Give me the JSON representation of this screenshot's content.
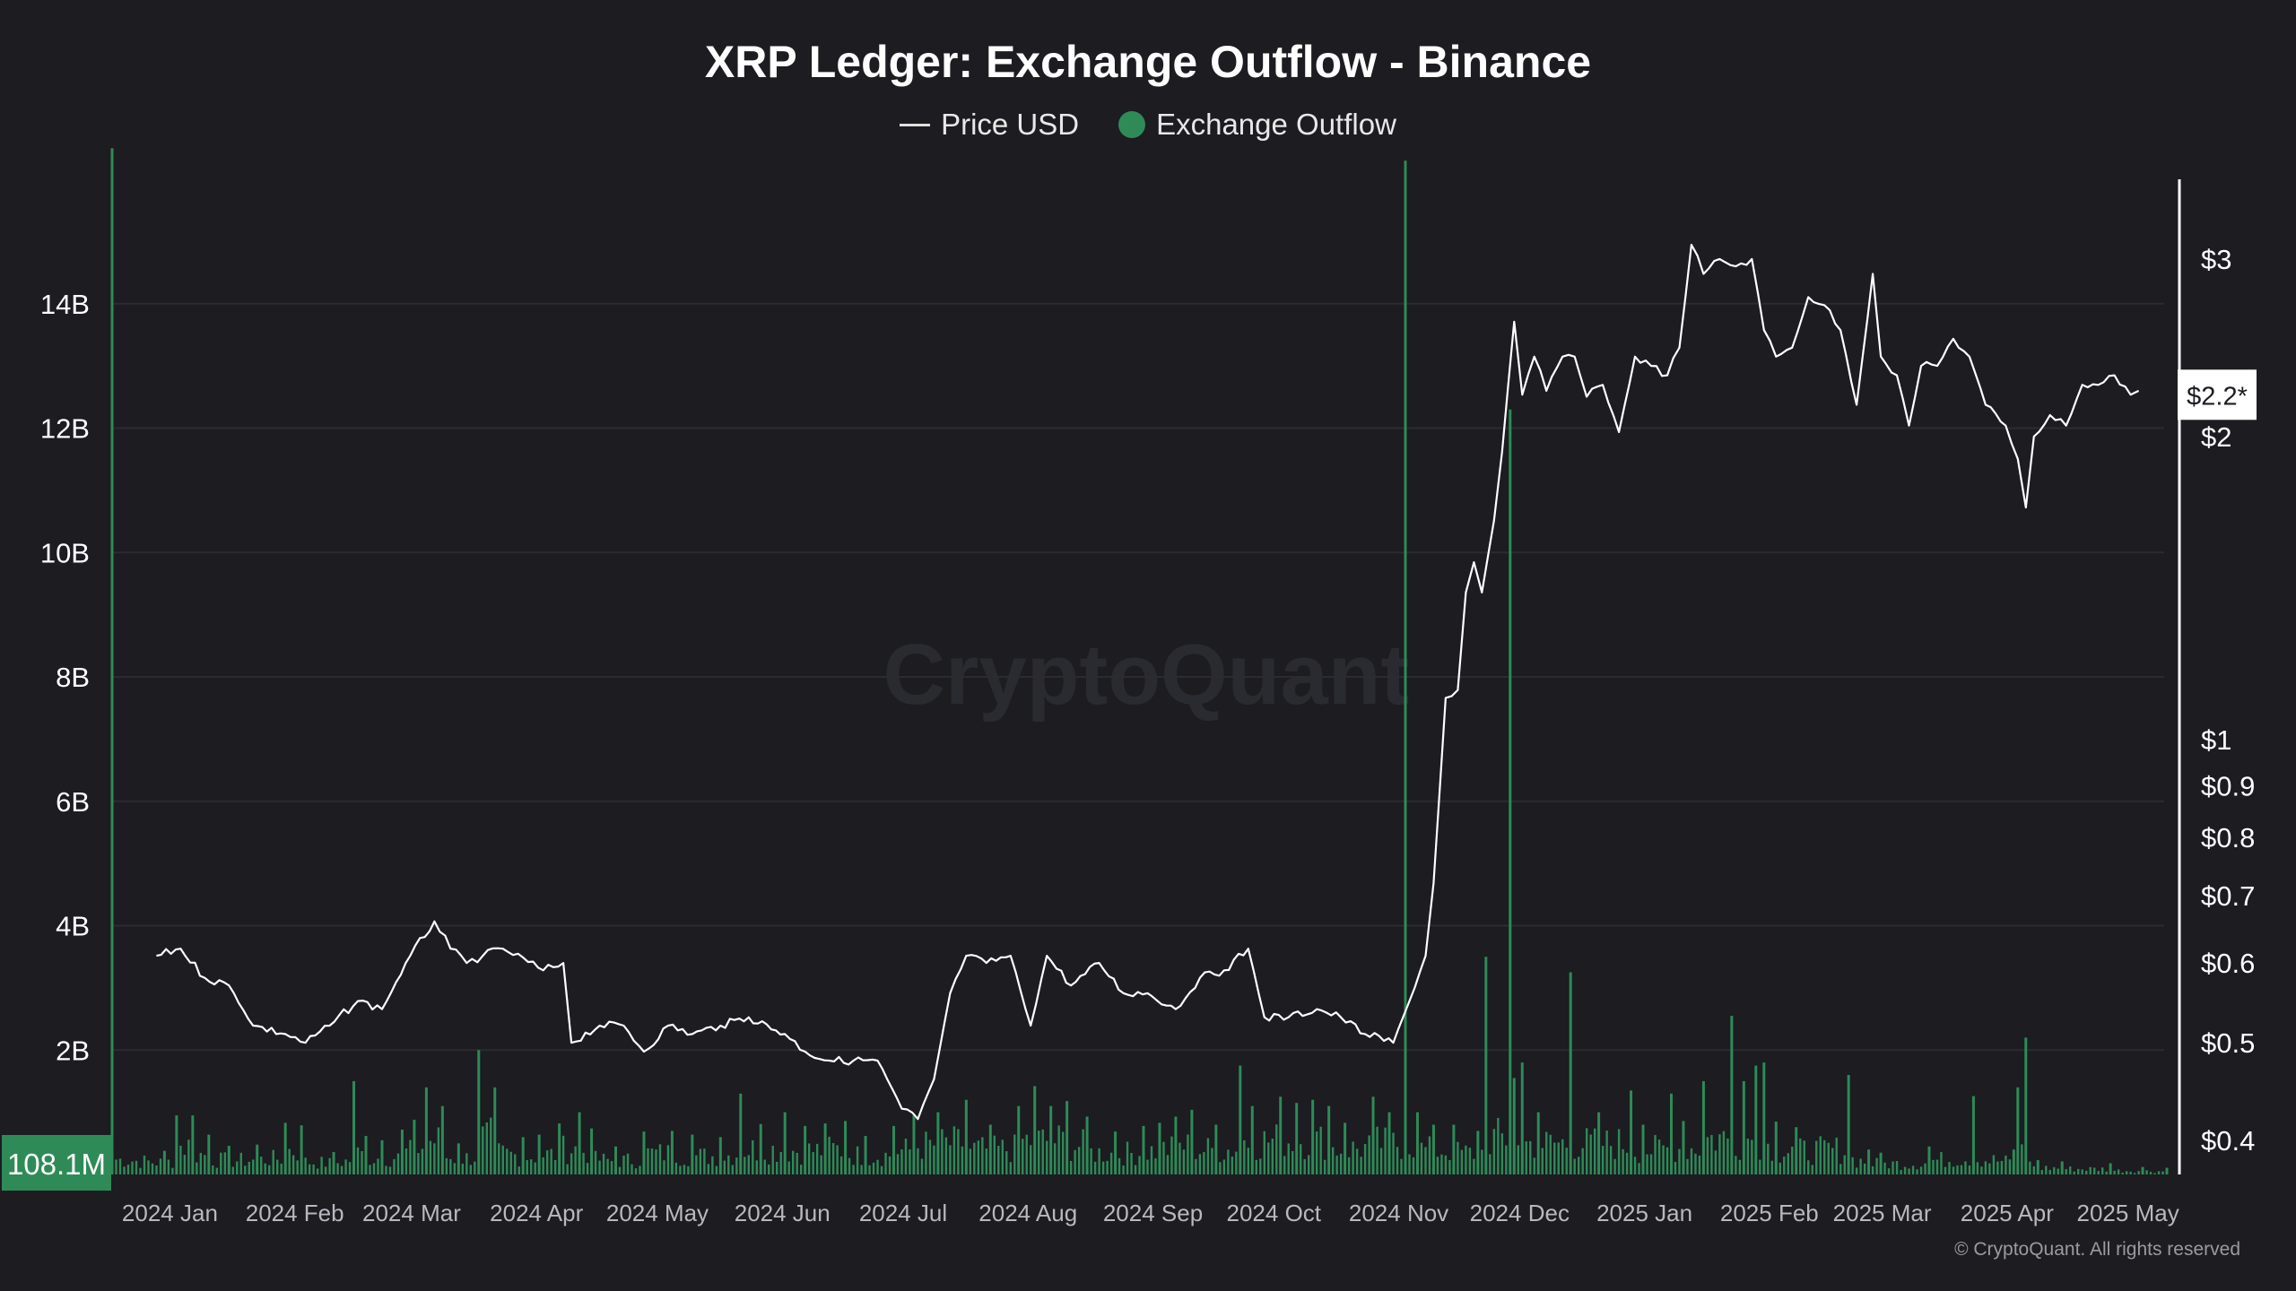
{
  "chart_data": {
    "type": "bar+line",
    "title": "XRP Ledger: Exchange Outflow - Binance",
    "watermark": "CryptoQuant",
    "copyright": "© CryptoQuant. All rights reserved",
    "legend": {
      "placement": "top-center",
      "items": [
        {
          "name": "Price USD",
          "marker": "line",
          "color": "#e0e0e0"
        },
        {
          "name": "Exchange Outflow",
          "marker": "dot",
          "color": "#2e8b57"
        }
      ]
    },
    "grid": true,
    "x_axis": {
      "range": [
        "2023-12-21",
        "2025-05-16"
      ],
      "ticks": [
        {
          "label": "2024 Jan",
          "date": "2024-01-01"
        },
        {
          "label": "2024 Feb",
          "date": "2024-02-01"
        },
        {
          "label": "2024 Mar",
          "date": "2024-03-01"
        },
        {
          "label": "2024 Apr",
          "date": "2024-04-01"
        },
        {
          "label": "2024 May",
          "date": "2024-05-01"
        },
        {
          "label": "2024 Jun",
          "date": "2024-06-01"
        },
        {
          "label": "2024 Jul",
          "date": "2024-07-01"
        },
        {
          "label": "2024 Aug",
          "date": "2024-08-01"
        },
        {
          "label": "2024 Sep",
          "date": "2024-09-01"
        },
        {
          "label": "2024 Oct",
          "date": "2024-10-01"
        },
        {
          "label": "2024 Nov",
          "date": "2024-11-01"
        },
        {
          "label": "2024 Dec",
          "date": "2024-12-01"
        },
        {
          "label": "2025 Jan",
          "date": "2025-01-01"
        },
        {
          "label": "2025 Feb",
          "date": "2025-02-01"
        },
        {
          "label": "2025 Mar",
          "date": "2025-03-01"
        },
        {
          "label": "2025 Apr",
          "date": "2025-04-01"
        },
        {
          "label": "2025 May",
          "date": "2025-05-01"
        }
      ]
    },
    "y_left": {
      "range": [
        0,
        16000000000
      ],
      "ticks": [
        {
          "label": "2B",
          "value": 2000000000
        },
        {
          "label": "4B",
          "value": 4000000000
        },
        {
          "label": "6B",
          "value": 6000000000
        },
        {
          "label": "8B",
          "value": 8000000000
        },
        {
          "label": "10B",
          "value": 10000000000
        },
        {
          "label": "12B",
          "value": 12000000000
        },
        {
          "label": "14B",
          "value": 14000000000
        }
      ],
      "current_label": "108.1M",
      "current_value": 108100000,
      "current_color": "#2e8b57"
    },
    "y_right": {
      "scale": "log",
      "range": [
        0.37,
        3.6
      ],
      "ticks": [
        {
          "label": "$0.4",
          "value": 0.4
        },
        {
          "label": "$0.5",
          "value": 0.5
        },
        {
          "label": "$0.6",
          "value": 0.6
        },
        {
          "label": "$0.7",
          "value": 0.7
        },
        {
          "label": "$0.8",
          "value": 0.8
        },
        {
          "label": "$0.9",
          "value": 0.9
        },
        {
          "label": "$1",
          "value": 1
        },
        {
          "label": "$2",
          "value": 2
        },
        {
          "label": "$3",
          "value": 3
        }
      ],
      "current_label": "$2.2*",
      "current_value": 2.2
    },
    "outflow_series": {
      "name": "Exchange Outflow",
      "color": "#2e8b57",
      "points": [
        [
          "2023-12-21",
          16500000000
        ],
        [
          "2024-01-03",
          380000000
        ],
        [
          "2024-01-06",
          950000000
        ],
        [
          "2024-01-10",
          950000000
        ],
        [
          "2024-01-14",
          640000000
        ],
        [
          "2024-01-19",
          460000000
        ],
        [
          "2024-01-26",
          480000000
        ],
        [
          "2024-02-02",
          830000000
        ],
        [
          "2024-02-06",
          790000000
        ],
        [
          "2024-02-14",
          360000000
        ],
        [
          "2024-02-19",
          1500000000
        ],
        [
          "2024-02-22",
          620000000
        ],
        [
          "2024-02-26",
          550000000
        ],
        [
          "2024-03-02",
          720000000
        ],
        [
          "2024-03-05",
          880000000
        ],
        [
          "2024-03-08",
          1400000000
        ],
        [
          "2024-03-12",
          1100000000
        ],
        [
          "2024-03-16",
          500000000
        ],
        [
          "2024-03-21",
          2000000000
        ],
        [
          "2024-03-25",
          1400000000
        ],
        [
          "2024-04-01",
          600000000
        ],
        [
          "2024-04-05",
          640000000
        ],
        [
          "2024-04-10",
          820000000
        ],
        [
          "2024-04-15",
          1000000000
        ],
        [
          "2024-04-18",
          740000000
        ],
        [
          "2024-04-24",
          450000000
        ],
        [
          "2024-05-01",
          690000000
        ],
        [
          "2024-05-08",
          700000000
        ],
        [
          "2024-05-13",
          640000000
        ],
        [
          "2024-05-20",
          600000000
        ],
        [
          "2024-05-25",
          1300000000
        ],
        [
          "2024-05-30",
          810000000
        ],
        [
          "2024-06-05",
          1000000000
        ],
        [
          "2024-06-10",
          780000000
        ],
        [
          "2024-06-15",
          820000000
        ],
        [
          "2024-06-20",
          860000000
        ],
        [
          "2024-06-25",
          620000000
        ],
        [
          "2024-07-02",
          780000000
        ],
        [
          "2024-07-07",
          950000000
        ],
        [
          "2024-07-13",
          1000000000
        ],
        [
          "2024-07-20",
          1200000000
        ],
        [
          "2024-07-26",
          800000000
        ],
        [
          "2024-08-02",
          1100000000
        ],
        [
          "2024-08-06",
          1420000000
        ],
        [
          "2024-08-10",
          1100000000
        ],
        [
          "2024-08-14",
          1180000000
        ],
        [
          "2024-08-19",
          930000000
        ],
        [
          "2024-08-26",
          690000000
        ],
        [
          "2024-09-02",
          780000000
        ],
        [
          "2024-09-06",
          830000000
        ],
        [
          "2024-09-10",
          930000000
        ],
        [
          "2024-09-14",
          1040000000
        ],
        [
          "2024-09-20",
          800000000
        ],
        [
          "2024-09-26",
          1750000000
        ],
        [
          "2024-09-29",
          1100000000
        ],
        [
          "2024-10-06",
          1250000000
        ],
        [
          "2024-10-10",
          1150000000
        ],
        [
          "2024-10-14",
          1200000000
        ],
        [
          "2024-10-18",
          1100000000
        ],
        [
          "2024-10-22",
          830000000
        ],
        [
          "2024-10-29",
          1250000000
        ],
        [
          "2024-11-02",
          1000000000
        ],
        [
          "2024-11-06",
          16300000000
        ],
        [
          "2024-11-09",
          1000000000
        ],
        [
          "2024-11-13",
          800000000
        ],
        [
          "2024-11-18",
          800000000
        ],
        [
          "2024-11-24",
          700000000
        ],
        [
          "2024-11-26",
          3500000000
        ],
        [
          "2024-12-02",
          12300000000
        ],
        [
          "2024-12-03",
          1550000000
        ],
        [
          "2024-12-05",
          1800000000
        ],
        [
          "2024-12-09",
          1000000000
        ],
        [
          "2024-12-17",
          3250000000
        ],
        [
          "2024-12-24",
          1000000000
        ],
        [
          "2025-01-01",
          1350000000
        ],
        [
          "2025-01-04",
          800000000
        ],
        [
          "2025-01-11",
          1300000000
        ],
        [
          "2025-01-14",
          860000000
        ],
        [
          "2025-01-19",
          1500000000
        ],
        [
          "2025-01-26",
          2550000000
        ],
        [
          "2025-01-29",
          1500000000
        ],
        [
          "2025-02-01",
          1750000000
        ],
        [
          "2025-02-03",
          1800000000
        ],
        [
          "2025-02-06",
          850000000
        ],
        [
          "2025-02-11",
          760000000
        ],
        [
          "2025-02-24",
          1600000000
        ],
        [
          "2025-03-01",
          400000000
        ],
        [
          "2025-03-04",
          350000000
        ],
        [
          "2025-03-16",
          450000000
        ],
        [
          "2025-03-27",
          1260000000
        ],
        [
          "2025-04-06",
          400000000
        ],
        [
          "2025-04-07",
          1400000000
        ],
        [
          "2025-04-09",
          2200000000
        ],
        [
          "2025-04-12",
          230000000
        ],
        [
          "2025-04-18",
          210000000
        ],
        [
          "2025-04-30",
          180000000
        ],
        [
          "2025-05-08",
          120000000
        ],
        [
          "2025-05-14",
          108100000
        ]
      ]
    },
    "price_series": {
      "name": "Price USD",
      "color": "#ffffff",
      "points": [
        [
          "2024-01-01",
          0.61
        ],
        [
          "2024-01-07",
          0.62
        ],
        [
          "2024-01-13",
          0.58
        ],
        [
          "2024-01-19",
          0.57
        ],
        [
          "2024-01-25",
          0.52
        ],
        [
          "2024-02-02",
          0.51
        ],
        [
          "2024-02-07",
          0.5
        ],
        [
          "2024-02-13",
          0.52
        ],
        [
          "2024-02-20",
          0.55
        ],
        [
          "2024-02-26",
          0.54
        ],
        [
          "2024-03-04",
          0.61
        ],
        [
          "2024-03-10",
          0.66
        ],
        [
          "2024-03-14",
          0.62
        ],
        [
          "2024-03-18",
          0.6
        ],
        [
          "2024-03-22",
          0.61
        ],
        [
          "2024-03-27",
          0.62
        ],
        [
          "2024-04-06",
          0.59
        ],
        [
          "2024-04-11",
          0.6
        ],
        [
          "2024-04-13",
          0.5
        ],
        [
          "2024-04-20",
          0.52
        ],
        [
          "2024-04-26",
          0.52
        ],
        [
          "2024-05-01",
          0.49
        ],
        [
          "2024-05-07",
          0.52
        ],
        [
          "2024-05-13",
          0.51
        ],
        [
          "2024-05-20",
          0.52
        ],
        [
          "2024-05-27",
          0.53
        ],
        [
          "2024-06-05",
          0.51
        ],
        [
          "2024-06-10",
          0.49
        ],
        [
          "2024-06-16",
          0.48
        ],
        [
          "2024-06-22",
          0.48
        ],
        [
          "2024-06-28",
          0.48
        ],
        [
          "2024-07-04",
          0.43
        ],
        [
          "2024-07-08",
          0.42
        ],
        [
          "2024-07-12",
          0.46
        ],
        [
          "2024-07-16",
          0.56
        ],
        [
          "2024-07-20",
          0.61
        ],
        [
          "2024-07-25",
          0.6
        ],
        [
          "2024-07-31",
          0.61
        ],
        [
          "2024-08-05",
          0.52
        ],
        [
          "2024-08-09",
          0.61
        ],
        [
          "2024-08-15",
          0.57
        ],
        [
          "2024-08-22",
          0.6
        ],
        [
          "2024-08-28",
          0.56
        ],
        [
          "2024-09-03",
          0.56
        ],
        [
          "2024-09-10",
          0.54
        ],
        [
          "2024-09-16",
          0.58
        ],
        [
          "2024-09-22",
          0.59
        ],
        [
          "2024-09-28",
          0.62
        ],
        [
          "2024-10-02",
          0.53
        ],
        [
          "2024-10-08",
          0.53
        ],
        [
          "2024-10-15",
          0.54
        ],
        [
          "2024-10-21",
          0.53
        ],
        [
          "2024-10-27",
          0.51
        ],
        [
          "2024-11-03",
          0.5
        ],
        [
          "2024-11-07",
          0.55
        ],
        [
          "2024-11-11",
          0.61
        ],
        [
          "2024-11-13",
          0.72
        ],
        [
          "2024-11-16",
          1.1
        ],
        [
          "2024-11-19",
          1.12
        ],
        [
          "2024-11-21",
          1.4
        ],
        [
          "2024-11-23",
          1.5
        ],
        [
          "2024-11-25",
          1.4
        ],
        [
          "2024-11-28",
          1.65
        ],
        [
          "2024-11-30",
          1.93
        ],
        [
          "2024-12-03",
          2.6
        ],
        [
          "2024-12-05",
          2.2
        ],
        [
          "2024-12-08",
          2.4
        ],
        [
          "2024-12-11",
          2.22
        ],
        [
          "2024-12-15",
          2.4
        ],
        [
          "2024-12-18",
          2.4
        ],
        [
          "2024-12-21",
          2.19
        ],
        [
          "2024-12-25",
          2.25
        ],
        [
          "2024-12-29",
          2.02
        ],
        [
          "2025-01-02",
          2.4
        ],
        [
          "2025-01-06",
          2.35
        ],
        [
          "2025-01-10",
          2.3
        ],
        [
          "2025-01-13",
          2.45
        ],
        [
          "2025-01-16",
          3.1
        ],
        [
          "2025-01-19",
          2.9
        ],
        [
          "2025-01-23",
          3.0
        ],
        [
          "2025-01-27",
          2.95
        ],
        [
          "2025-01-31",
          3.0
        ],
        [
          "2025-02-03",
          2.55
        ],
        [
          "2025-02-06",
          2.4
        ],
        [
          "2025-02-10",
          2.45
        ],
        [
          "2025-02-14",
          2.75
        ],
        [
          "2025-02-18",
          2.7
        ],
        [
          "2025-02-22",
          2.55
        ],
        [
          "2025-02-26",
          2.15
        ],
        [
          "2025-03-02",
          2.9
        ],
        [
          "2025-03-04",
          2.4
        ],
        [
          "2025-03-08",
          2.3
        ],
        [
          "2025-03-11",
          2.05
        ],
        [
          "2025-03-14",
          2.35
        ],
        [
          "2025-03-18",
          2.35
        ],
        [
          "2025-03-22",
          2.5
        ],
        [
          "2025-03-26",
          2.4
        ],
        [
          "2025-03-30",
          2.15
        ],
        [
          "2025-04-04",
          2.05
        ],
        [
          "2025-04-07",
          1.9
        ],
        [
          "2025-04-09",
          1.7
        ],
        [
          "2025-04-11",
          2.0
        ],
        [
          "2025-04-15",
          2.1
        ],
        [
          "2025-04-19",
          2.05
        ],
        [
          "2025-04-23",
          2.25
        ],
        [
          "2025-04-27",
          2.25
        ],
        [
          "2025-05-01",
          2.3
        ],
        [
          "2025-05-05",
          2.2
        ],
        [
          "2025-05-07",
          2.22
        ]
      ]
    }
  }
}
